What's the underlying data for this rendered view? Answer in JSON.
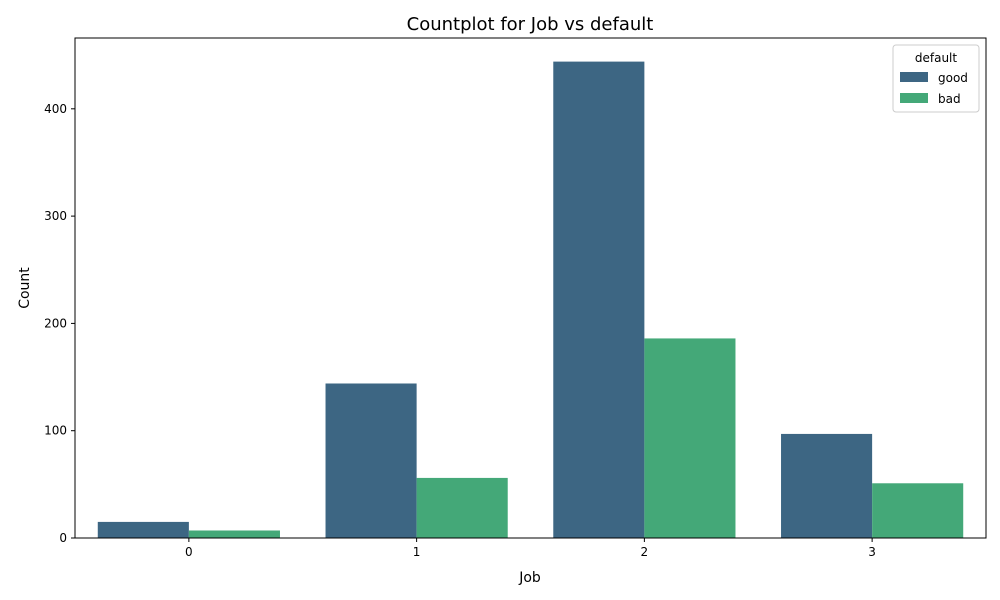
{
  "chart_data": {
    "type": "bar",
    "title": "Countplot for Job vs default",
    "xlabel": "Job",
    "ylabel": "Count",
    "categories": [
      "0",
      "1",
      "2",
      "3"
    ],
    "series": [
      {
        "name": "good",
        "values": [
          15,
          144,
          444,
          97
        ],
        "color": "#3d6683"
      },
      {
        "name": "bad",
        "values": [
          7,
          56,
          186,
          51
        ],
        "color": "#44a878"
      }
    ],
    "ylim": [
      0,
      466
    ],
    "yticks": [
      0,
      100,
      200,
      300,
      400
    ],
    "grid": false,
    "legend": {
      "title": "default",
      "position": "top-right"
    }
  }
}
